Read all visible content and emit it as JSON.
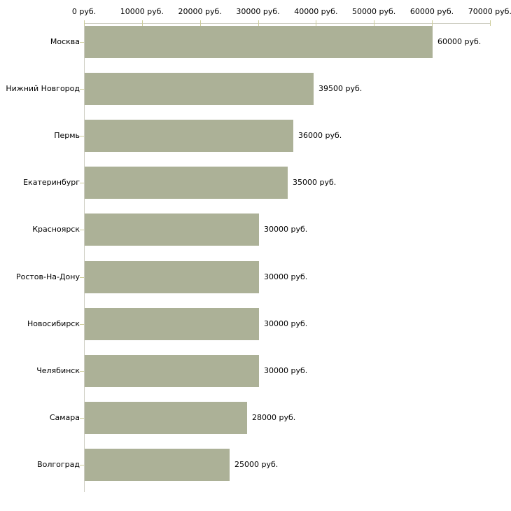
{
  "chart_data": {
    "type": "bar",
    "orientation": "horizontal",
    "title": "",
    "xlabel": "",
    "ylabel": "",
    "categories": [
      "Москва",
      "Нижний Новгород",
      "Пермь",
      "Екатеринбург",
      "Красноярск",
      "Ростов-На-Дону",
      "Новосибирск",
      "Челябинск",
      "Самара",
      "Волгоград"
    ],
    "values": [
      60000,
      39500,
      36000,
      35000,
      30000,
      30000,
      30000,
      30000,
      28000,
      25000
    ],
    "value_labels": [
      "60000 руб.",
      "39500 руб.",
      "36000 руб.",
      "35000 руб.",
      "30000 руб.",
      "30000 руб.",
      "30000 руб.",
      "30000 руб.",
      "28000 руб.",
      "25000 руб."
    ],
    "x_axis": {
      "position": "top",
      "range": [
        0,
        70000
      ],
      "tick_values": [
        0,
        10000,
        20000,
        30000,
        40000,
        50000,
        60000,
        70000
      ],
      "tick_labels": [
        "0 руб.",
        "10000 руб.",
        "20000 руб.",
        "30000 руб.",
        "40000 руб.",
        "50000 руб.",
        "60000 руб.",
        "70000 руб."
      ]
    },
    "grid": false,
    "legend": false,
    "colors": {
      "bar_fill": "#acb197",
      "axis_line": "#cdcdc2",
      "tick_mark": "#cccc99",
      "text": "#000000",
      "background": "#ffffff"
    }
  }
}
